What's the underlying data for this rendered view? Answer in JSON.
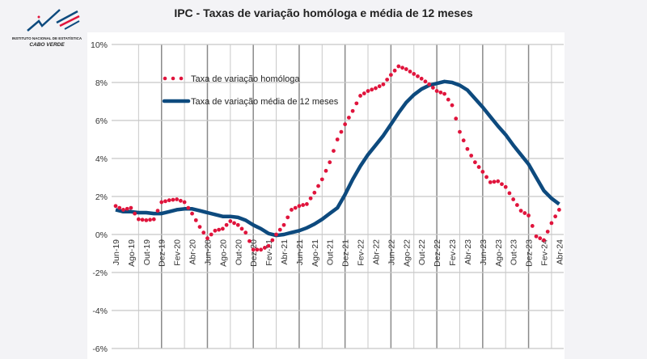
{
  "logo": {
    "line1": "INSTITUTO NACIONAL DE ESTATÍSTICA",
    "line2": "CABO VERDE"
  },
  "colors": {
    "homologa": "#e0143c",
    "media12": "#0d4a7e",
    "grid_light": "#c8c8c8",
    "grid_dark": "#8a8a8a"
  },
  "chart_data": {
    "type": "line",
    "title": "IPC - Taxas de variação homóloga e média de 12 meses",
    "xlabel": "",
    "ylabel": "",
    "ylim": [
      -6,
      10
    ],
    "yticks": [
      "10%",
      "8%",
      "6%",
      "4%",
      "2%",
      "0%",
      "-2%",
      "-4%",
      "-6%"
    ],
    "ytick_values": [
      10,
      8,
      6,
      4,
      2,
      0,
      -2,
      -4,
      -6
    ],
    "xtick_labels": [
      "Jun-19",
      "Ago-19",
      "Out-19",
      "Dez-19",
      "Fev-20",
      "Abr-20",
      "Jun-20",
      "Ago-20",
      "Out-20",
      "Dez-20",
      "Fev-21",
      "Abr-21",
      "Jun-21",
      "Ago-21",
      "Out-21",
      "Dez-21",
      "Fev-22",
      "Abr-22",
      "Jun-22",
      "Ago-22",
      "Out-22",
      "Dez-22",
      "Fev-23",
      "Abr-23",
      "Jun-23",
      "Ago-23",
      "Out-23",
      "Dez-23",
      "Fev-24",
      "Abr-24"
    ],
    "grid": true,
    "legend_position": "top-left",
    "x": [
      "Jun-19",
      "Jul-19",
      "Ago-19",
      "Set-19",
      "Out-19",
      "Nov-19",
      "Dez-19",
      "Jan-20",
      "Fev-20",
      "Mar-20",
      "Abr-20",
      "Mai-20",
      "Jun-20",
      "Jul-20",
      "Ago-20",
      "Set-20",
      "Out-20",
      "Nov-20",
      "Dez-20",
      "Jan-21",
      "Fev-21",
      "Mar-21",
      "Abr-21",
      "Mai-21",
      "Jun-21",
      "Jul-21",
      "Ago-21",
      "Set-21",
      "Out-21",
      "Nov-21",
      "Dez-21",
      "Jan-22",
      "Fev-22",
      "Mar-22",
      "Abr-22",
      "Mai-22",
      "Jun-22",
      "Jul-22",
      "Ago-22",
      "Set-22",
      "Out-22",
      "Nov-22",
      "Dez-22",
      "Jan-23",
      "Fev-23",
      "Mar-23",
      "Abr-23",
      "Mai-23",
      "Jun-23",
      "Jul-23",
      "Ago-23",
      "Set-23",
      "Out-23",
      "Nov-23",
      "Dez-23",
      "Jan-24",
      "Fev-24",
      "Mar-24",
      "Abr-24"
    ],
    "series": [
      {
        "name": "Taxa de variação homóloga",
        "style": "dotted",
        "values": [
          1.5,
          1.3,
          1.4,
          0.8,
          0.75,
          0.8,
          1.7,
          1.8,
          1.85,
          1.7,
          1.1,
          0.4,
          -0.2,
          0.2,
          0.3,
          0.7,
          0.5,
          0.1,
          -0.8,
          -0.8,
          -0.6,
          0.0,
          0.5,
          1.3,
          1.5,
          1.6,
          2.2,
          2.9,
          3.8,
          5.0,
          5.8,
          6.5,
          7.3,
          7.55,
          7.7,
          7.9,
          8.4,
          8.85,
          8.7,
          8.45,
          8.2,
          7.9,
          7.55,
          7.4,
          6.8,
          5.4,
          4.5,
          3.8,
          3.3,
          2.75,
          2.8,
          2.5,
          1.85,
          1.25,
          1.0,
          -0.1,
          -0.3,
          0.6,
          1.3
        ]
      },
      {
        "name": "Taxa de variação média de 12 meses",
        "style": "solid",
        "values": [
          1.3,
          1.2,
          1.2,
          1.15,
          1.15,
          1.1,
          1.1,
          1.2,
          1.3,
          1.35,
          1.35,
          1.25,
          1.15,
          1.05,
          0.95,
          0.95,
          0.9,
          0.75,
          0.5,
          0.3,
          0.05,
          -0.05,
          0.0,
          0.1,
          0.2,
          0.35,
          0.55,
          0.8,
          1.1,
          1.4,
          2.1,
          2.9,
          3.6,
          4.2,
          4.7,
          5.2,
          5.8,
          6.4,
          6.95,
          7.35,
          7.65,
          7.85,
          7.95,
          8.05,
          8.0,
          7.85,
          7.6,
          7.15,
          6.7,
          6.2,
          5.7,
          5.25,
          4.7,
          4.2,
          3.7,
          3.0,
          2.3,
          1.9,
          1.6
        ]
      }
    ]
  }
}
